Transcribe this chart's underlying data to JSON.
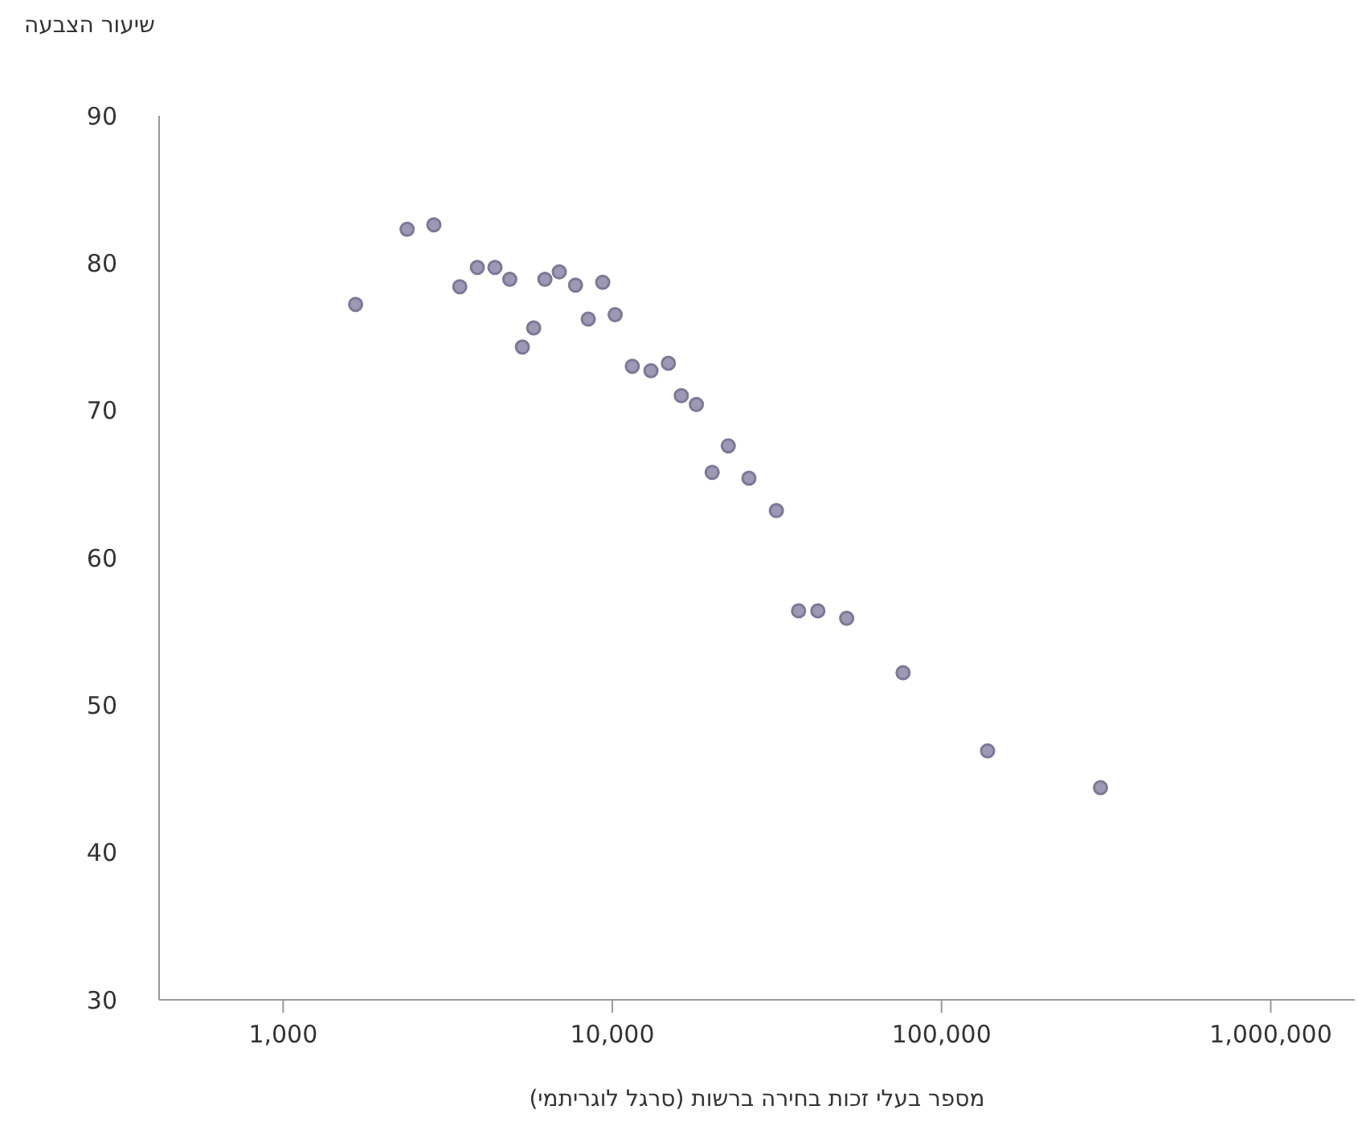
{
  "chart_data": {
    "type": "scatter",
    "xlabel": "מספר בעלי זכות בחירה ברשות (סרגל לוגריתמי)",
    "ylabel": "שיעור הצבעה",
    "log": "x",
    "grid": false,
    "marker": "circle",
    "xlim": [
      420,
      1800000
    ],
    "xticks": [
      {
        "value": 1000,
        "label": "1,000"
      },
      {
        "value": 10000,
        "label": "10,000"
      },
      {
        "value": 100000,
        "label": "100,000"
      },
      {
        "value": 1000000,
        "label": "1,000,000"
      }
    ],
    "ylim": [
      30,
      90
    ],
    "yticks": [
      30,
      40,
      50,
      60,
      70,
      80,
      90
    ],
    "x": [
      1660,
      2380,
      2870,
      3440,
      3890,
      4400,
      4880,
      5330,
      5770,
      6240,
      6900,
      7730,
      8450,
      9350,
      10200,
      11500,
      13100,
      14800,
      16200,
      18000,
      20100,
      22500,
      26000,
      31500,
      36800,
      42100,
      51500,
      76400,
      138000,
      304000
    ],
    "series": [
      {
        "color": "#9d99b5",
        "values": [
          77.2,
          82.3,
          82.6,
          78.4,
          79.7,
          79.7,
          78.9,
          74.3,
          75.6,
          78.9,
          79.4,
          78.5,
          76.2,
          78.7,
          76.5,
          73.0,
          72.7,
          73.2,
          71.0,
          70.4,
          65.8,
          67.6,
          65.4,
          63.2,
          56.4,
          56.4,
          55.9,
          52.2,
          46.9,
          44.4
        ]
      }
    ]
  }
}
